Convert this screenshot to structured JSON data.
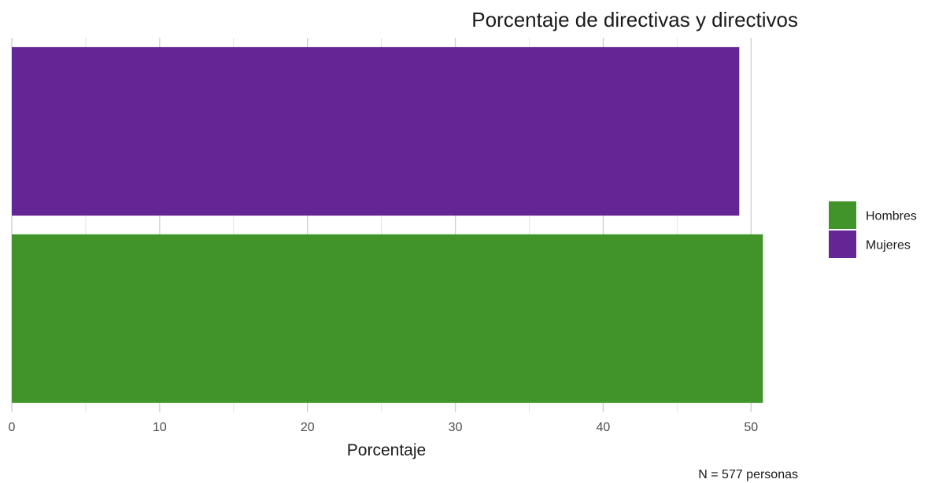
{
  "chart_data": {
    "type": "bar",
    "orientation": "horizontal",
    "title": "Porcentaje de directivas y directivos",
    "xlabel": "Porcentaje",
    "ylabel": "",
    "categories": [
      "Mujeres",
      "Hombres"
    ],
    "values": [
      49.2,
      50.8
    ],
    "colors": [
      "#632694",
      "#41942a"
    ],
    "xlim": [
      0,
      51.9
    ],
    "xticks": [
      0,
      10,
      20,
      30,
      40,
      50
    ],
    "grid": true,
    "legend": {
      "placement": "right",
      "entries": [
        {
          "label": "Hombres",
          "color": "#41942a"
        },
        {
          "label": "Mujeres",
          "color": "#632694"
        }
      ]
    },
    "caption": "N = 577 personas"
  }
}
